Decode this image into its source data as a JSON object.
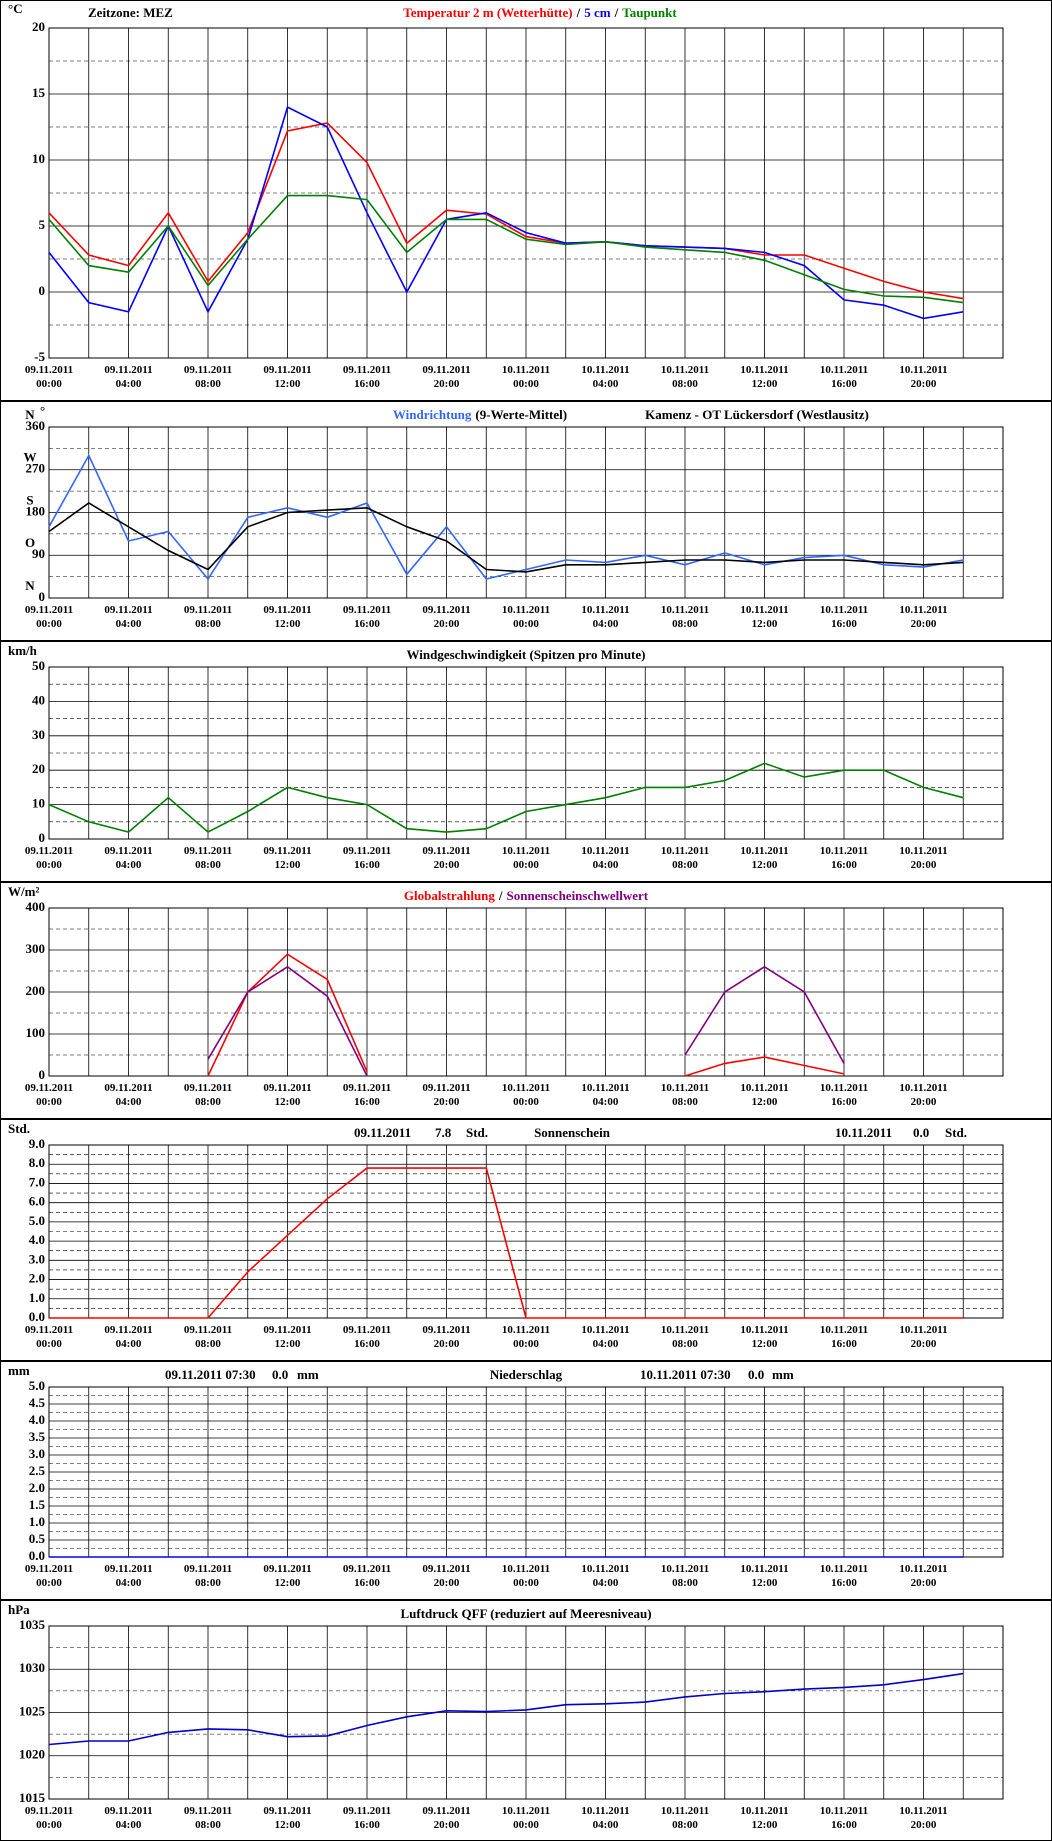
{
  "chart_data": [
    {
      "type": "line",
      "unit": "°C",
      "timezone": "Zeitzone: MEZ",
      "legend_separator": "/",
      "x": [
        "09.11.2011 00:00",
        "09.11.2011 02:00",
        "09.11.2011 04:00",
        "09.11.2011 06:00",
        "09.11.2011 08:00",
        "09.11.2011 10:00",
        "09.11.2011 12:00",
        "09.11.2011 14:00",
        "09.11.2011 16:00",
        "09.11.2011 18:00",
        "09.11.2011 20:00",
        "09.11.2011 22:00",
        "10.11.2011 00:00",
        "10.11.2011 02:00",
        "10.11.2011 04:00",
        "10.11.2011 06:00",
        "10.11.2011 08:00",
        "10.11.2011 10:00",
        "10.11.2011 12:00",
        "10.11.2011 14:00",
        "10.11.2011 16:00",
        "10.11.2011 18:00",
        "10.11.2011 20:00",
        "10.11.2011 22:00"
      ],
      "xticks": [
        "09.11.2011 00:00",
        "09.11.2011 04:00",
        "09.11.2011 08:00",
        "09.11.2011 12:00",
        "09.11.2011 16:00",
        "09.11.2011 20:00",
        "10.11.2011 00:00",
        "10.11.2011 04:00",
        "10.11.2011 08:00",
        "10.11.2011 12:00",
        "10.11.2011 16:00",
        "10.11.2011 20:00"
      ],
      "ylim": [
        -5,
        20
      ],
      "yticks": [
        -5,
        0,
        5,
        10,
        15,
        20
      ],
      "series": [
        {
          "name": "Temperatur 2 m (Wetterhütte)",
          "color": "#ff0000",
          "values": [
            6,
            2.8,
            2,
            6,
            0.8,
            4.5,
            12.2,
            12.8,
            9.8,
            3.7,
            6.2,
            5.9,
            4.2,
            3.7,
            3.8,
            3.5,
            3.4,
            3.3,
            2.8,
            2.8,
            1.8,
            0.8,
            0,
            -0.5
          ]
        },
        {
          "name": "5 cm",
          "color": "#0000ff",
          "values": [
            3,
            -0.8,
            -1.5,
            5,
            -1.5,
            4,
            14,
            12.5,
            6,
            0,
            5.5,
            6,
            4.5,
            3.7,
            3.8,
            3.5,
            3.4,
            3.3,
            3,
            2,
            -0.6,
            -1,
            -2,
            -1.5
          ]
        },
        {
          "name": "Taupunkt",
          "color": "#008000",
          "values": [
            5.5,
            2,
            1.5,
            5,
            0.5,
            4,
            7.3,
            7.3,
            7,
            3,
            5.5,
            5.5,
            4,
            3.6,
            3.8,
            3.4,
            3.2,
            3,
            2.4,
            1.3,
            0.2,
            -0.3,
            -0.4,
            -0.8
          ]
        }
      ]
    },
    {
      "type": "line",
      "unit": "°",
      "subtitle": "(9-Werte-Mittel)",
      "station": "Kamenz - OT Lückersdorf (Westlausitz)",
      "x": [
        "09.11.2011 00:00",
        "09.11.2011 02:00",
        "09.11.2011 04:00",
        "09.11.2011 06:00",
        "09.11.2011 08:00",
        "09.11.2011 10:00",
        "09.11.2011 12:00",
        "09.11.2011 14:00",
        "09.11.2011 16:00",
        "09.11.2011 18:00",
        "09.11.2011 20:00",
        "09.11.2011 22:00",
        "10.11.2011 00:00",
        "10.11.2011 02:00",
        "10.11.2011 04:00",
        "10.11.2011 06:00",
        "10.11.2011 08:00",
        "10.11.2011 10:00",
        "10.11.2011 12:00",
        "10.11.2011 14:00",
        "10.11.2011 16:00",
        "10.11.2011 18:00",
        "10.11.2011 20:00",
        "10.11.2011 22:00"
      ],
      "xticks": [
        "09.11.2011 00:00",
        "09.11.2011 04:00",
        "09.11.2011 08:00",
        "09.11.2011 12:00",
        "09.11.2011 16:00",
        "09.11.2011 20:00",
        "10.11.2011 00:00",
        "10.11.2011 04:00",
        "10.11.2011 08:00",
        "10.11.2011 12:00",
        "10.11.2011 16:00",
        "10.11.2011 20:00"
      ],
      "ylim": [
        0,
        360
      ],
      "yticks": [
        0,
        90,
        180,
        270,
        360
      ],
      "direction_labels": [
        {
          "value": 0,
          "label": "N"
        },
        {
          "value": 90,
          "label": "O"
        },
        {
          "value": 180,
          "label": "S"
        },
        {
          "value": 270,
          "label": "W"
        },
        {
          "value": 360,
          "label": "N"
        }
      ],
      "series": [
        {
          "name": "Windrichtung",
          "color": "#3366ff",
          "values": [
            150,
            300,
            120,
            140,
            40,
            170,
            190,
            170,
            200,
            50,
            150,
            40,
            60,
            80,
            75,
            90,
            70,
            95,
            70,
            85,
            90,
            70,
            65,
            80
          ]
        },
        {
          "color": "#000000",
          "values": [
            140,
            200,
            150,
            100,
            60,
            150,
            180,
            185,
            190,
            150,
            120,
            60,
            55,
            70,
            70,
            75,
            80,
            80,
            75,
            80,
            80,
            75,
            70,
            75
          ]
        }
      ]
    },
    {
      "type": "line",
      "unit": "km/h",
      "title": "Windgeschwindigkeit (Spitzen pro Minute)",
      "x": [
        "09.11.2011 00:00",
        "09.11.2011 02:00",
        "09.11.2011 04:00",
        "09.11.2011 06:00",
        "09.11.2011 08:00",
        "09.11.2011 10:00",
        "09.11.2011 12:00",
        "09.11.2011 14:00",
        "09.11.2011 16:00",
        "09.11.2011 18:00",
        "09.11.2011 20:00",
        "09.11.2011 22:00",
        "10.11.2011 00:00",
        "10.11.2011 02:00",
        "10.11.2011 04:00",
        "10.11.2011 06:00",
        "10.11.2011 08:00",
        "10.11.2011 10:00",
        "10.11.2011 12:00",
        "10.11.2011 14:00",
        "10.11.2011 16:00",
        "10.11.2011 18:00",
        "10.11.2011 20:00",
        "10.11.2011 22:00"
      ],
      "xticks": [
        "09.11.2011 00:00",
        "09.11.2011 04:00",
        "09.11.2011 08:00",
        "09.11.2011 12:00",
        "09.11.2011 16:00",
        "09.11.2011 20:00",
        "10.11.2011 00:00",
        "10.11.2011 04:00",
        "10.11.2011 08:00",
        "10.11.2011 12:00",
        "10.11.2011 16:00",
        "10.11.2011 20:00"
      ],
      "ylim": [
        0,
        50
      ],
      "yticks": [
        0,
        10,
        20,
        30,
        40,
        50
      ],
      "series": [
        {
          "color": "#008000",
          "values": [
            10,
            5,
            2,
            12,
            2,
            8,
            15,
            12,
            10,
            3,
            2,
            3,
            8,
            10,
            12,
            15,
            15,
            17,
            22,
            18,
            20,
            20,
            15,
            12
          ]
        }
      ]
    },
    {
      "type": "line",
      "unit": "W/m²",
      "legend_separator": "/",
      "x": [
        "09.11.2011 00:00",
        "09.11.2011 02:00",
        "09.11.2011 04:00",
        "09.11.2011 06:00",
        "09.11.2011 08:00",
        "09.11.2011 10:00",
        "09.11.2011 12:00",
        "09.11.2011 14:00",
        "09.11.2011 16:00",
        "09.11.2011 18:00",
        "09.11.2011 20:00",
        "09.11.2011 22:00",
        "10.11.2011 00:00",
        "10.11.2011 02:00",
        "10.11.2011 04:00",
        "10.11.2011 06:00",
        "10.11.2011 08:00",
        "10.11.2011 10:00",
        "10.11.2011 12:00",
        "10.11.2011 14:00",
        "10.11.2011 16:00",
        "10.11.2011 18:00",
        "10.11.2011 20:00",
        "10.11.2011 22:00"
      ],
      "xticks": [
        "09.11.2011 00:00",
        "09.11.2011 04:00",
        "09.11.2011 08:00",
        "09.11.2011 12:00",
        "09.11.2011 16:00",
        "09.11.2011 20:00",
        "10.11.2011 00:00",
        "10.11.2011 04:00",
        "10.11.2011 08:00",
        "10.11.2011 12:00",
        "10.11.2011 16:00",
        "10.11.2011 20:00"
      ],
      "ylim": [
        0,
        400
      ],
      "yticks": [
        0,
        100,
        200,
        300,
        400
      ],
      "series": [
        {
          "name": "Globalstrahlung",
          "color": "#ff0000",
          "values": [
            null,
            null,
            null,
            null,
            0,
            200,
            290,
            230,
            10,
            null,
            null,
            null,
            null,
            null,
            null,
            null,
            0,
            30,
            45,
            25,
            5,
            null,
            null,
            null
          ]
        },
        {
          "name": "Sonnenscheinschwellwert",
          "color": "#800080",
          "values": [
            null,
            null,
            null,
            null,
            40,
            200,
            260,
            190,
            0,
            null,
            null,
            null,
            null,
            null,
            null,
            null,
            50,
            200,
            260,
            200,
            30,
            null,
            null,
            null
          ]
        }
      ]
    },
    {
      "type": "line",
      "unit": "Std.",
      "title": "Sonnenschein",
      "summaries": [
        {
          "date": "09.11.2011",
          "value": 7.8,
          "unit": "Std."
        },
        {
          "date": "10.11.2011",
          "value": {
            "value": 0,
            "label": "0.0"
          },
          "unit": "Std."
        }
      ],
      "x": [
        "09.11.2011 00:00",
        "09.11.2011 02:00",
        "09.11.2011 04:00",
        "09.11.2011 06:00",
        "09.11.2011 08:00",
        "09.11.2011 10:00",
        "09.11.2011 12:00",
        "09.11.2011 14:00",
        "09.11.2011 16:00",
        "09.11.2011 18:00",
        "09.11.2011 20:00",
        "09.11.2011 22:00",
        "10.11.2011 00:00",
        "10.11.2011 02:00",
        "10.11.2011 04:00",
        "10.11.2011 06:00",
        "10.11.2011 08:00",
        "10.11.2011 10:00",
        "10.11.2011 12:00",
        "10.11.2011 14:00",
        "10.11.2011 16:00",
        "10.11.2011 18:00",
        "10.11.2011 20:00",
        "10.11.2011 22:00"
      ],
      "xticks": [
        "09.11.2011 00:00",
        "09.11.2011 04:00",
        "09.11.2011 08:00",
        "09.11.2011 12:00",
        "09.11.2011 16:00",
        "09.11.2011 20:00",
        "10.11.2011 00:00",
        "10.11.2011 04:00",
        "10.11.2011 08:00",
        "10.11.2011 12:00",
        "10.11.2011 16:00",
        "10.11.2011 20:00"
      ],
      "ylim": [
        0,
        9
      ],
      "yticks": [
        {
          "value": 0,
          "label": "0.0"
        },
        {
          "value": 1,
          "label": "1.0"
        },
        {
          "value": 2,
          "label": "2.0"
        },
        {
          "value": 3,
          "label": "3.0"
        },
        {
          "value": 4,
          "label": "4.0"
        },
        {
          "value": 5,
          "label": "5.0"
        },
        {
          "value": 6,
          "label": "6.0"
        },
        {
          "value": 7,
          "label": "7.0"
        },
        {
          "value": 8,
          "label": "8.0"
        },
        {
          "value": 9,
          "label": "9.0"
        }
      ],
      "series": [
        {
          "color": "#ff0000",
          "values": [
            0,
            0,
            0,
            0,
            0,
            2.4,
            4.3,
            6.2,
            7.8,
            7.8,
            7.8,
            7.8,
            0,
            0,
            0,
            0,
            0,
            0,
            0,
            0,
            0,
            0,
            0,
            0
          ]
        }
      ]
    },
    {
      "type": "line",
      "unit": "mm",
      "title": "Niederschlag",
      "summaries": [
        {
          "date": "09.11.2011 07:30",
          "value": {
            "value": 0,
            "label": "0.0"
          },
          "unit": "mm"
        },
        {
          "date": "10.11.2011 07:30",
          "value": {
            "value": 0,
            "label": "0.0"
          },
          "unit": "mm"
        }
      ],
      "x": [
        "09.11.2011 00:00",
        "09.11.2011 02:00",
        "09.11.2011 04:00",
        "09.11.2011 06:00",
        "09.11.2011 08:00",
        "09.11.2011 10:00",
        "09.11.2011 12:00",
        "09.11.2011 14:00",
        "09.11.2011 16:00",
        "09.11.2011 18:00",
        "09.11.2011 20:00",
        "09.11.2011 22:00",
        "10.11.2011 00:00",
        "10.11.2011 02:00",
        "10.11.2011 04:00",
        "10.11.2011 06:00",
        "10.11.2011 08:00",
        "10.11.2011 10:00",
        "10.11.2011 12:00",
        "10.11.2011 14:00",
        "10.11.2011 16:00",
        "10.11.2011 18:00",
        "10.11.2011 20:00",
        "10.11.2011 22:00"
      ],
      "xticks": [
        "09.11.2011 00:00",
        "09.11.2011 04:00",
        "09.11.2011 08:00",
        "09.11.2011 12:00",
        "09.11.2011 16:00",
        "09.11.2011 20:00",
        "10.11.2011 00:00",
        "10.11.2011 04:00",
        "10.11.2011 08:00",
        "10.11.2011 12:00",
        "10.11.2011 16:00",
        "10.11.2011 20:00"
      ],
      "ylim": [
        0,
        5
      ],
      "yticks": [
        {
          "value": 0,
          "label": "0.0"
        },
        {
          "value": 0.5,
          "label": "0.5"
        },
        {
          "value": 1,
          "label": "1.0"
        },
        {
          "value": 1.5,
          "label": "1.5"
        },
        {
          "value": 2,
          "label": "2.0"
        },
        {
          "value": 2.5,
          "label": "2.5"
        },
        {
          "value": 3,
          "label": "3.0"
        },
        {
          "value": 3.5,
          "label": "3.5"
        },
        {
          "value": 4,
          "label": "4.0"
        },
        {
          "value": 4.5,
          "label": "4.5"
        },
        {
          "value": 5,
          "label": "5.0"
        }
      ],
      "series": [
        {
          "color": "#0000ff",
          "values": [
            0,
            0,
            0,
            0,
            0,
            0,
            0,
            0,
            0,
            0,
            0,
            0,
            0,
            0,
            0,
            0,
            0,
            0,
            0,
            0,
            0,
            0,
            0,
            0
          ]
        }
      ]
    },
    {
      "type": "line",
      "unit": "hPa",
      "title": "Luftdruck QFF (reduziert auf Meeresniveau)",
      "x": [
        "09.11.2011 00:00",
        "09.11.2011 02:00",
        "09.11.2011 04:00",
        "09.11.2011 06:00",
        "09.11.2011 08:00",
        "09.11.2011 10:00",
        "09.11.2011 12:00",
        "09.11.2011 14:00",
        "09.11.2011 16:00",
        "09.11.2011 18:00",
        "09.11.2011 20:00",
        "09.11.2011 22:00",
        "10.11.2011 00:00",
        "10.11.2011 02:00",
        "10.11.2011 04:00",
        "10.11.2011 06:00",
        "10.11.2011 08:00",
        "10.11.2011 10:00",
        "10.11.2011 12:00",
        "10.11.2011 14:00",
        "10.11.2011 16:00",
        "10.11.2011 18:00",
        "10.11.2011 20:00",
        "10.11.2011 22:00"
      ],
      "xticks": [
        "09.11.2011 00:00",
        "09.11.2011 04:00",
        "09.11.2011 08:00",
        "09.11.2011 12:00",
        "09.11.2011 16:00",
        "09.11.2011 20:00",
        "10.11.2011 00:00",
        "10.11.2011 04:00",
        "10.11.2011 08:00",
        "10.11.2011 12:00",
        "10.11.2011 16:00",
        "10.11.2011 20:00"
      ],
      "ylim": [
        1015,
        1035
      ],
      "yticks": [
        1015,
        1020,
        1025,
        1030,
        1035
      ],
      "series": [
        {
          "color": "#0000cc",
          "values": [
            1021.3,
            1021.7,
            1021.7,
            1022.7,
            1023.1,
            1023,
            1022.2,
            1022.3,
            1023.5,
            1024.5,
            1025.2,
            1025.1,
            1025.3,
            1025.9,
            1026,
            1026.2,
            1026.8,
            1027.2,
            1027.4,
            1027.7,
            1027.9,
            1028.2,
            1028.8,
            1029.5
          ]
        }
      ]
    }
  ]
}
